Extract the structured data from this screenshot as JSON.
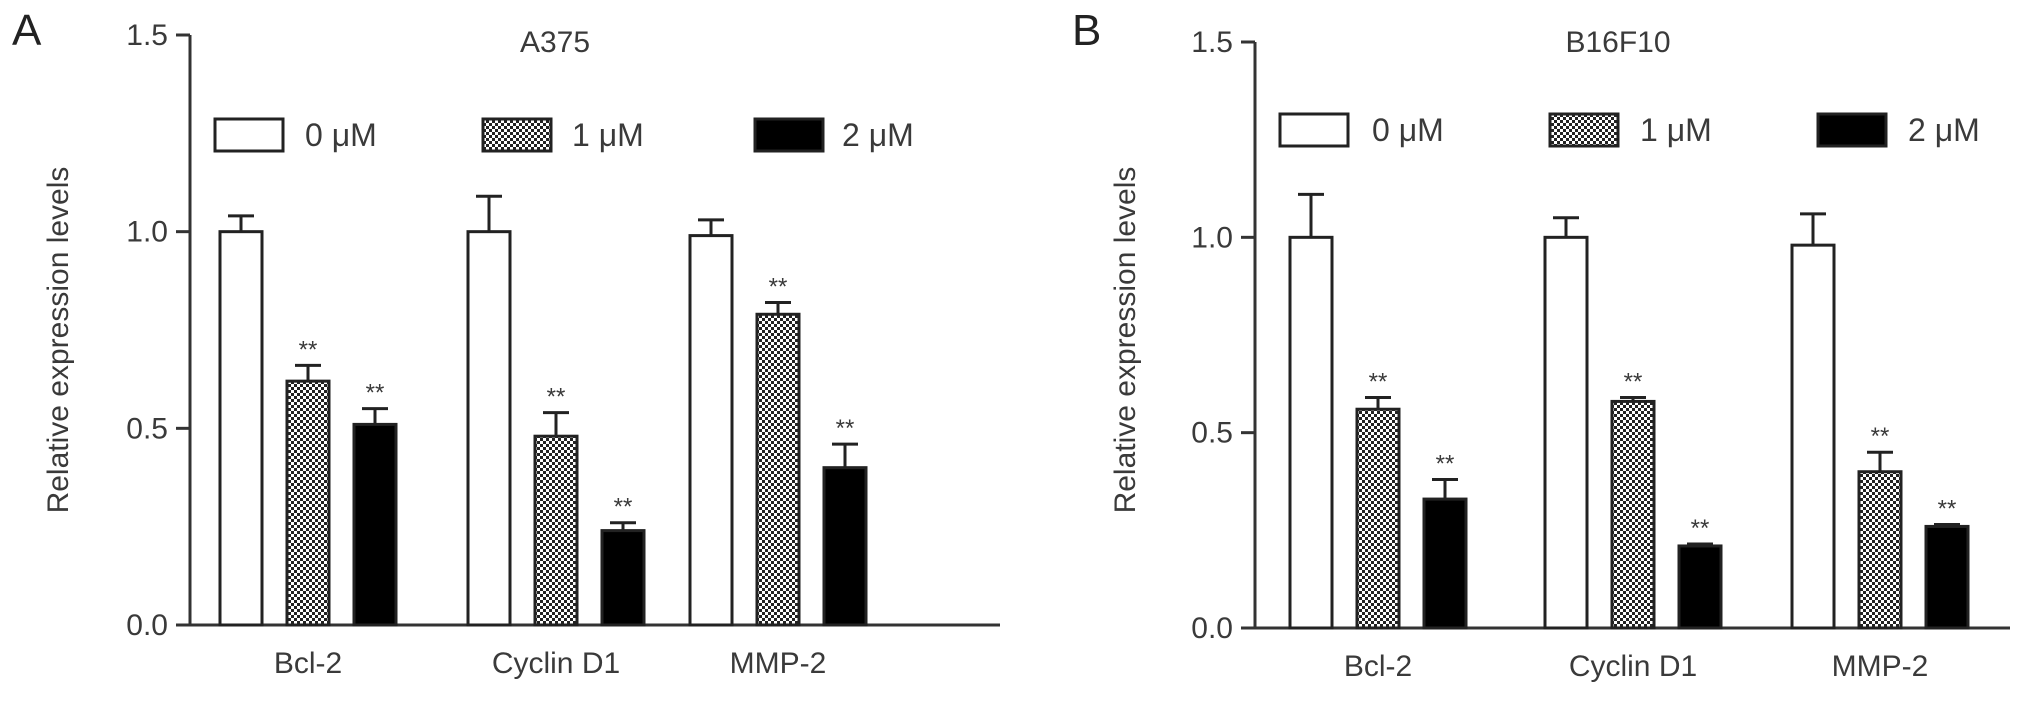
{
  "colors": {
    "axis": "#333333",
    "fill_0": "#ffffff",
    "fill_1": "checker",
    "fill_2": "#000000"
  },
  "chart_data": [
    {
      "panel": "A",
      "type": "bar",
      "title": "A375",
      "ylabel": "Relative expression levels",
      "xlabel": "",
      "ylim": [
        0,
        1.5
      ],
      "yticks": [
        "0.0",
        "0.5",
        "1.0",
        "1.5"
      ],
      "grid": false,
      "legend_position": "top",
      "categories": [
        "Bcl-2",
        "Cyclin D1",
        "MMP-2"
      ],
      "series": [
        {
          "name": "0 μM",
          "values": [
            1.0,
            1.0,
            0.99
          ],
          "errors": [
            0.04,
            0.09,
            0.04
          ],
          "sig": [
            "",
            "",
            ""
          ]
        },
        {
          "name": "1 μM",
          "values": [
            0.62,
            0.48,
            0.79
          ],
          "errors": [
            0.04,
            0.06,
            0.03
          ],
          "sig": [
            "**",
            "**",
            "**"
          ]
        },
        {
          "name": "2 μM",
          "values": [
            0.51,
            0.24,
            0.4
          ],
          "errors": [
            0.04,
            0.02,
            0.06
          ],
          "sig": [
            "**",
            "**",
            "**"
          ]
        }
      ]
    },
    {
      "panel": "B",
      "type": "bar",
      "title": "B16F10",
      "ylabel": "Relative expression levels",
      "xlabel": "",
      "ylim": [
        0,
        1.5
      ],
      "yticks": [
        "0.0",
        "0.5",
        "1.0",
        "1.5"
      ],
      "grid": false,
      "legend_position": "top",
      "categories": [
        "Bcl-2",
        "Cyclin D1",
        "MMP-2"
      ],
      "series": [
        {
          "name": "0 μM",
          "values": [
            1.0,
            1.0,
            0.98
          ],
          "errors": [
            0.11,
            0.05,
            0.08
          ],
          "sig": [
            "",
            "",
            ""
          ]
        },
        {
          "name": "1 μM",
          "values": [
            0.56,
            0.58,
            0.4
          ],
          "errors": [
            0.03,
            0.01,
            0.05
          ],
          "sig": [
            "**",
            "**",
            "**"
          ]
        },
        {
          "name": "2 μM",
          "values": [
            0.33,
            0.21,
            0.26
          ],
          "errors": [
            0.05,
            0.005,
            0.005
          ],
          "sig": [
            "**",
            "**",
            "**"
          ]
        }
      ]
    }
  ]
}
